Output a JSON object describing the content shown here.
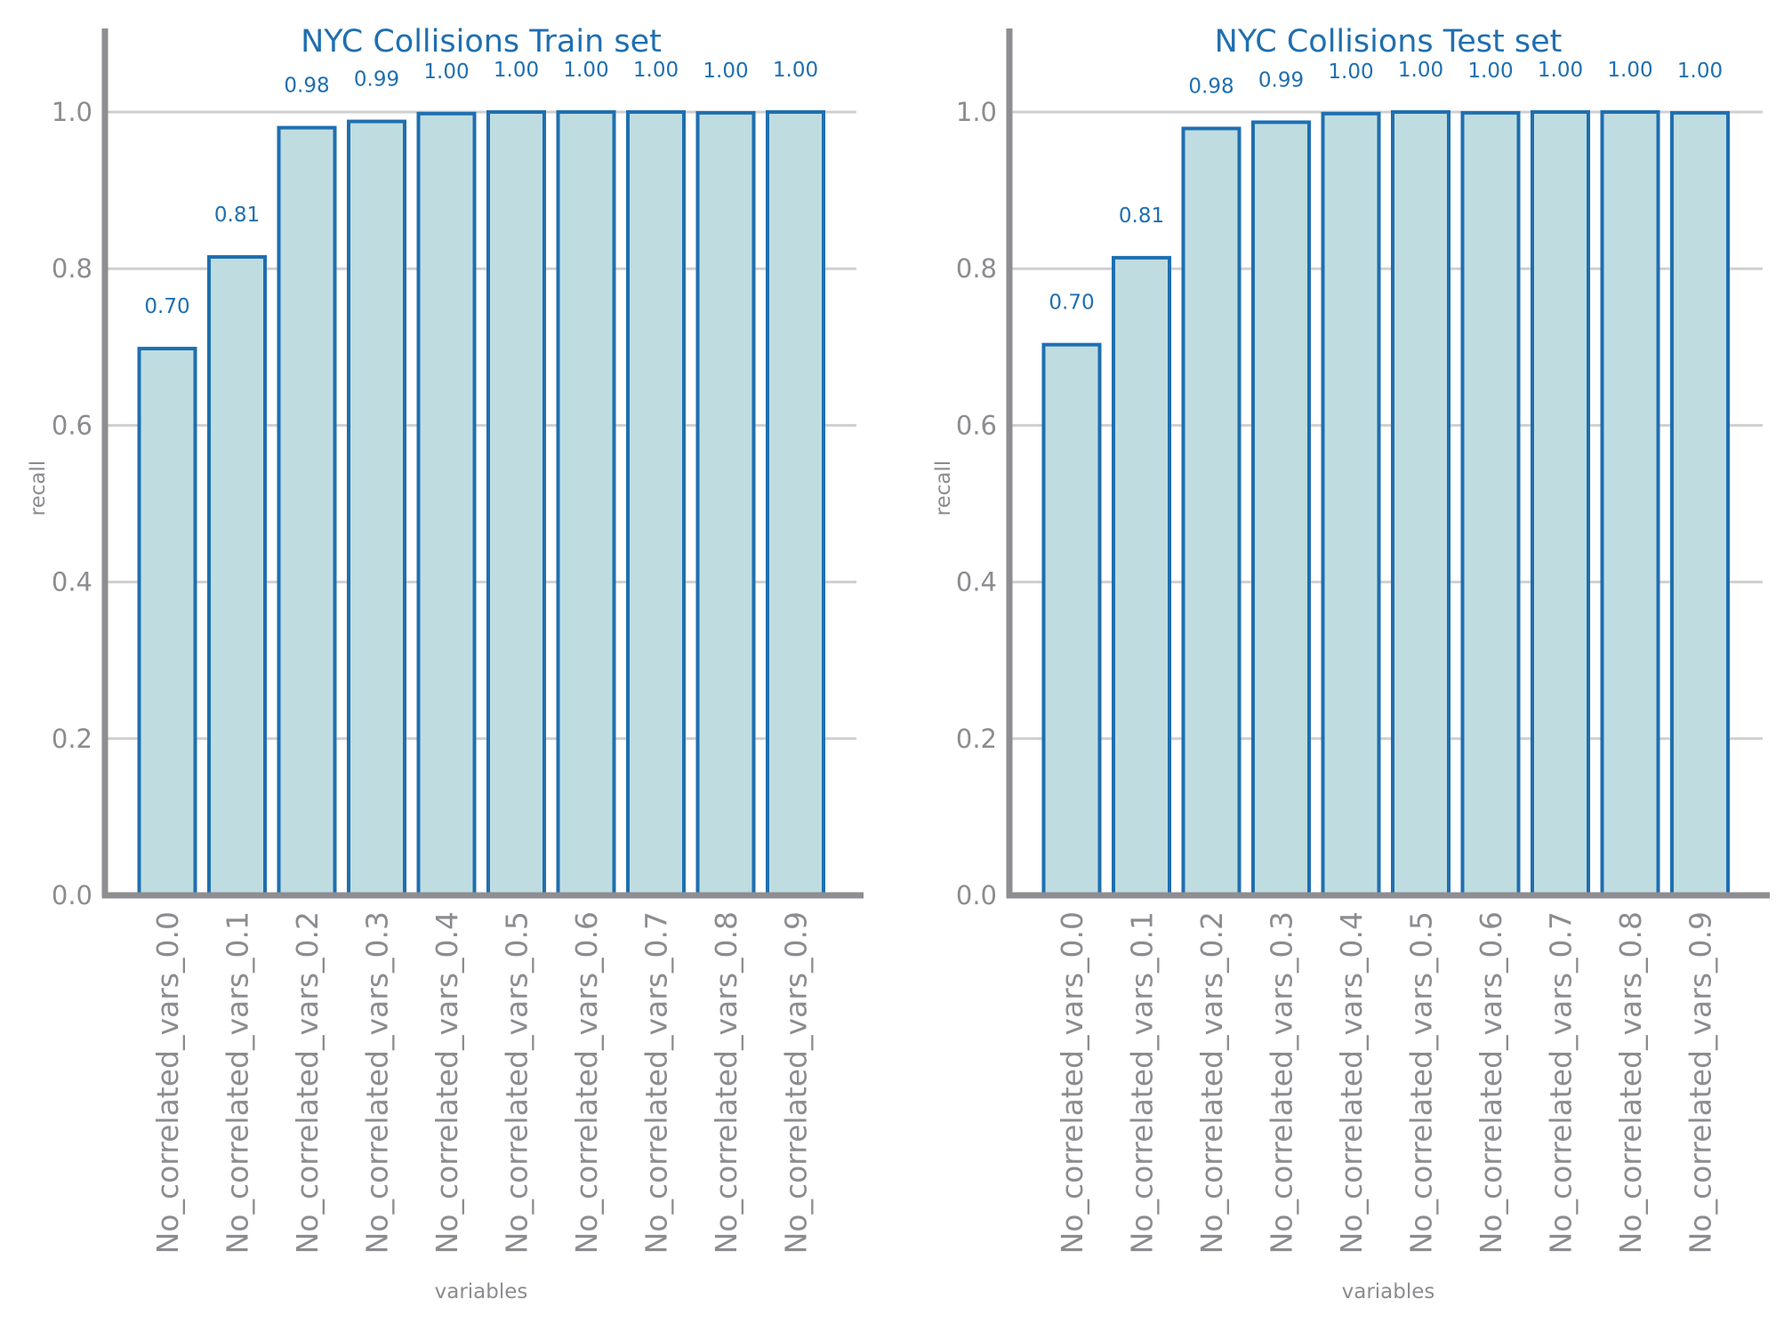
{
  "chart_data": [
    {
      "type": "bar",
      "title": "NYC Collisions Train set",
      "xlabel": "variables",
      "ylabel": "recall",
      "ylim": [
        0,
        1.05
      ],
      "yticks": [
        "0.0",
        "0.2",
        "0.4",
        "0.6",
        "0.8",
        "1.0"
      ],
      "grid": "horizontal",
      "categories": [
        "No_correlated_vars_0.0",
        "No_correlated_vars_0.1",
        "No_correlated_vars_0.2",
        "No_correlated_vars_0.3",
        "No_correlated_vars_0.4",
        "No_correlated_vars_0.5",
        "No_correlated_vars_0.6",
        "No_correlated_vars_0.7",
        "No_correlated_vars_0.8",
        "No_correlated_vars_0.9"
      ],
      "values": [
        0.698,
        0.815,
        0.98,
        0.988,
        0.998,
        1.0,
        1.0,
        1.0,
        0.999,
        1.0
      ],
      "labels": [
        "0.70",
        "0.81",
        "0.98",
        "0.99",
        "1.00",
        "1.00",
        "1.00",
        "1.00",
        "1.00",
        "1.00"
      ],
      "colors": {
        "fill": "#bfdde1",
        "edge": "#1f6fb0",
        "text": "#1f6fb0",
        "axis": "#8e8e92"
      }
    },
    {
      "type": "bar",
      "title": "NYC Collisions Test set",
      "xlabel": "variables",
      "ylabel": "recall",
      "ylim": [
        0,
        1.05
      ],
      "yticks": [
        "0.0",
        "0.2",
        "0.4",
        "0.6",
        "0.8",
        "1.0"
      ],
      "grid": "horizontal",
      "categories": [
        "No_correlated_vars_0.0",
        "No_correlated_vars_0.1",
        "No_correlated_vars_0.2",
        "No_correlated_vars_0.3",
        "No_correlated_vars_0.4",
        "No_correlated_vars_0.5",
        "No_correlated_vars_0.6",
        "No_correlated_vars_0.7",
        "No_correlated_vars_0.8",
        "No_correlated_vars_0.9"
      ],
      "values": [
        0.703,
        0.814,
        0.979,
        0.987,
        0.998,
        1.0,
        0.999,
        1.0,
        1.0,
        0.999
      ],
      "labels": [
        "0.70",
        "0.81",
        "0.98",
        "0.99",
        "1.00",
        "1.00",
        "1.00",
        "1.00",
        "1.00",
        "1.00"
      ],
      "colors": {
        "fill": "#bfdde1",
        "edge": "#1f6fb0",
        "text": "#1f6fb0",
        "axis": "#8e8e92"
      }
    }
  ]
}
